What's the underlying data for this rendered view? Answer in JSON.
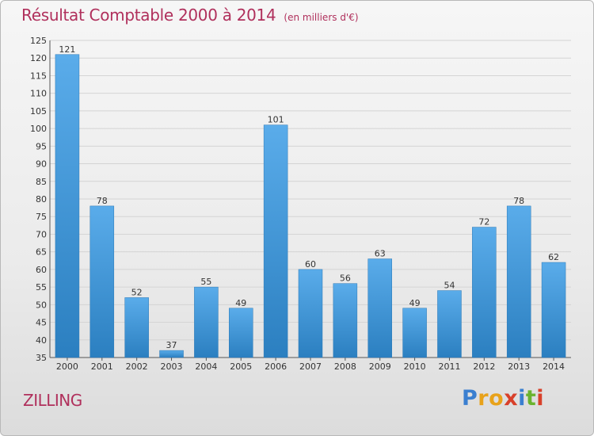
{
  "chart_data": {
    "type": "bar",
    "title": "Résultat Comptable 2000 à 2014",
    "unit_note": "(en milliers d'€)",
    "xlabel": "",
    "ylabel": "",
    "categories": [
      "2000",
      "2001",
      "2002",
      "2003",
      "2004",
      "2005",
      "2006",
      "2007",
      "2008",
      "2009",
      "2010",
      "2011",
      "2012",
      "2013",
      "2014"
    ],
    "values": [
      121,
      78,
      52,
      37,
      55,
      49,
      101,
      60,
      56,
      63,
      49,
      54,
      72,
      78,
      62
    ],
    "ylim": [
      35,
      125
    ],
    "ytick_step": 5,
    "grid": true,
    "bar_color_top": "#5aacea",
    "bar_color_bottom": "#2b7fc0"
  },
  "commune_name": "ZILLING",
  "logo": {
    "letters": [
      "P",
      "r",
      "o",
      "x",
      "i",
      "t",
      "i"
    ],
    "colors": [
      "#3a7fd0",
      "#e8a21a",
      "#e8a21a",
      "#d8402a",
      "#3a7fd0",
      "#6ab32e",
      "#d8402a"
    ]
  }
}
